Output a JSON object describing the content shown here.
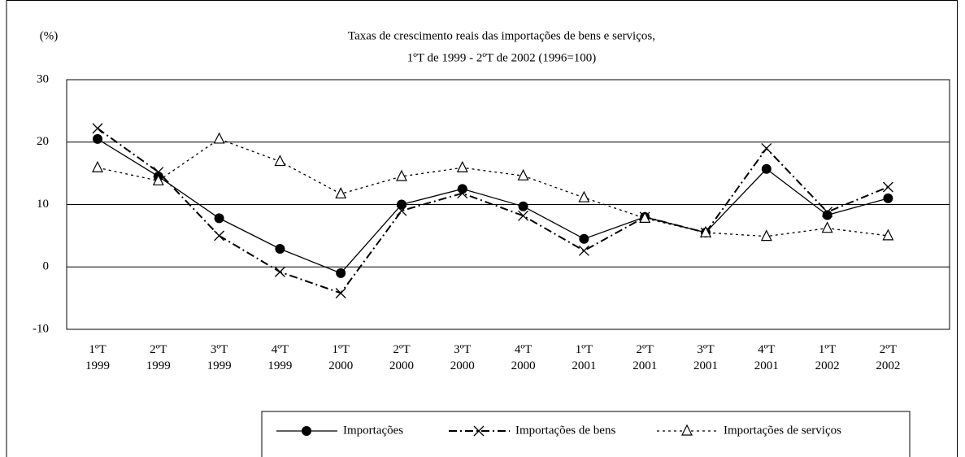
{
  "chart_data": {
    "type": "line",
    "title": "Taxas de crescimento reais das importações de bens e serviços,",
    "subtitle": "1ºT de 1999 - 2ºT de 2002 (1996=100)",
    "y_label": "(%)",
    "categories": [
      "1ºT\n1999",
      "2ºT\n1999",
      "3ºT\n1999",
      "4ºT\n1999",
      "1ºT\n2000",
      "2ºT\n2000",
      "3ºT\n2000",
      "4ºT\n2000",
      "1ºT\n2001",
      "2ºT\n2001",
      "3ºT\n2001",
      "4ºT\n2001",
      "1ºT\n2002",
      "2ºT\n2002"
    ],
    "series": [
      {
        "name": "Importações",
        "color": "#000000",
        "dash": "solid",
        "marker": "circle",
        "values": [
          20.5,
          14.5,
          7.8,
          2.9,
          -1.0,
          10.0,
          12.5,
          9.7,
          4.5,
          8.0,
          5.5,
          15.7,
          8.3,
          11.0
        ]
      },
      {
        "name": "Importações de bens",
        "color": "#000000",
        "dash": "dashdot",
        "marker": "x",
        "values": [
          22.2,
          15.2,
          5.0,
          -0.8,
          -4.2,
          9.0,
          11.8,
          8.2,
          2.6,
          8.0,
          5.5,
          19.0,
          8.8,
          12.8
        ]
      },
      {
        "name": "Importações de serviços",
        "color": "#000000",
        "dash": "dotted",
        "marker": "triangle",
        "values": [
          15.9,
          13.8,
          20.5,
          16.9,
          11.7,
          14.5,
          15.9,
          14.6,
          11.1,
          7.8,
          5.5,
          4.9,
          6.2,
          5.0
        ]
      }
    ],
    "ylim": [
      -10,
      30
    ],
    "yticks": [
      -10,
      0,
      10,
      20,
      30
    ],
    "grid": true,
    "legend": "bottom"
  }
}
